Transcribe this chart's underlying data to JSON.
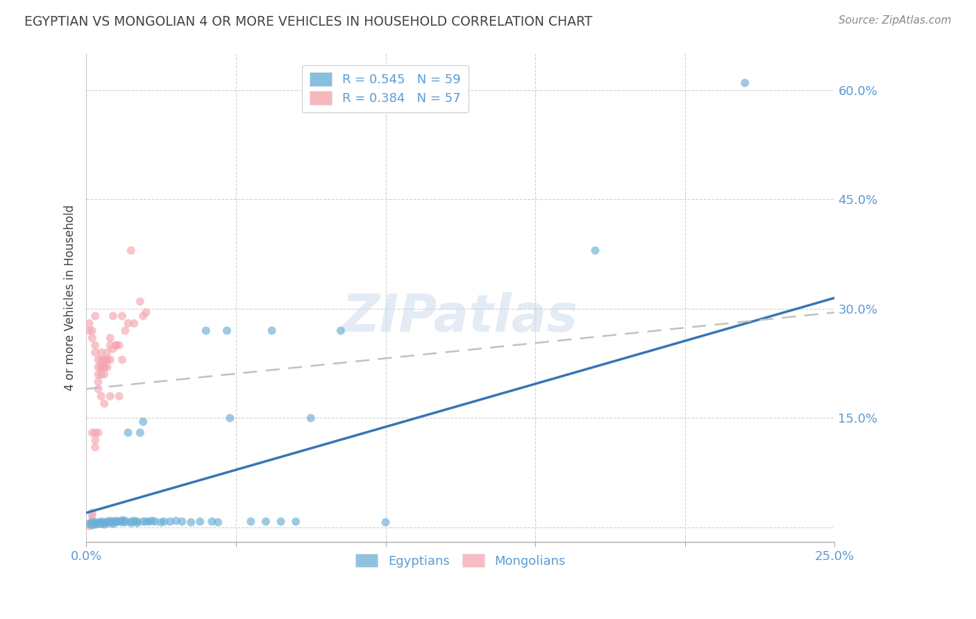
{
  "title": "EGYPTIAN VS MONGOLIAN 4 OR MORE VEHICLES IN HOUSEHOLD CORRELATION CHART",
  "source": "Source: ZipAtlas.com",
  "ylabel": "4 or more Vehicles in Household",
  "xlim": [
    0.0,
    0.25
  ],
  "ylim": [
    -0.02,
    0.65
  ],
  "yticks": [
    0.0,
    0.15,
    0.3,
    0.45,
    0.6
  ],
  "ytick_labels": [
    "",
    "15.0%",
    "30.0%",
    "45.0%",
    "60.0%"
  ],
  "xticks": [
    0.0,
    0.05,
    0.1,
    0.15,
    0.2,
    0.25
  ],
  "xtick_labels": [
    "0.0%",
    "",
    "",
    "",
    "",
    "25.0%"
  ],
  "watermark": "ZIPatlas",
  "legend_entries": [
    {
      "label": "R = 0.545   N = 59",
      "color": "#6baed6"
    },
    {
      "label": "R = 0.384   N = 57",
      "color": "#f4a6b0"
    }
  ],
  "egyptians_scatter": [
    [
      0.001,
      0.005
    ],
    [
      0.002,
      0.008
    ],
    [
      0.002,
      0.003
    ],
    [
      0.003,
      0.006
    ],
    [
      0.003,
      0.004
    ],
    [
      0.004,
      0.007
    ],
    [
      0.004,
      0.005
    ],
    [
      0.005,
      0.008
    ],
    [
      0.005,
      0.005
    ],
    [
      0.006,
      0.007
    ],
    [
      0.006,
      0.004
    ],
    [
      0.007,
      0.008
    ],
    [
      0.007,
      0.006
    ],
    [
      0.008,
      0.009
    ],
    [
      0.008,
      0.006
    ],
    [
      0.009,
      0.008
    ],
    [
      0.009,
      0.005
    ],
    [
      0.01,
      0.009
    ],
    [
      0.01,
      0.007
    ],
    [
      0.011,
      0.008
    ],
    [
      0.012,
      0.01
    ],
    [
      0.012,
      0.007
    ],
    [
      0.013,
      0.009
    ],
    [
      0.013,
      0.007
    ],
    [
      0.014,
      0.13
    ],
    [
      0.015,
      0.008
    ],
    [
      0.015,
      0.006
    ],
    [
      0.016,
      0.009
    ],
    [
      0.017,
      0.008
    ],
    [
      0.017,
      0.006
    ],
    [
      0.018,
      0.13
    ],
    [
      0.019,
      0.008
    ],
    [
      0.019,
      0.145
    ],
    [
      0.02,
      0.008
    ],
    [
      0.021,
      0.008
    ],
    [
      0.022,
      0.009
    ],
    [
      0.023,
      0.008
    ],
    [
      0.025,
      0.007
    ],
    [
      0.026,
      0.008
    ],
    [
      0.028,
      0.008
    ],
    [
      0.03,
      0.009
    ],
    [
      0.032,
      0.008
    ],
    [
      0.035,
      0.007
    ],
    [
      0.038,
      0.008
    ],
    [
      0.04,
      0.27
    ],
    [
      0.042,
      0.008
    ],
    [
      0.044,
      0.007
    ],
    [
      0.047,
      0.27
    ],
    [
      0.048,
      0.15
    ],
    [
      0.055,
      0.008
    ],
    [
      0.06,
      0.008
    ],
    [
      0.062,
      0.27
    ],
    [
      0.065,
      0.008
    ],
    [
      0.07,
      0.008
    ],
    [
      0.075,
      0.15
    ],
    [
      0.085,
      0.27
    ],
    [
      0.1,
      0.007
    ],
    [
      0.17,
      0.38
    ],
    [
      0.22,
      0.61
    ]
  ],
  "mongolians_scatter": [
    [
      0.001,
      0.002
    ],
    [
      0.001,
      0.005
    ],
    [
      0.001,
      0.27
    ],
    [
      0.001,
      0.28
    ],
    [
      0.002,
      0.26
    ],
    [
      0.002,
      0.13
    ],
    [
      0.002,
      0.27
    ],
    [
      0.002,
      0.005
    ],
    [
      0.002,
      0.015
    ],
    [
      0.002,
      0.02
    ],
    [
      0.003,
      0.13
    ],
    [
      0.003,
      0.12
    ],
    [
      0.003,
      0.11
    ],
    [
      0.003,
      0.24
    ],
    [
      0.003,
      0.29
    ],
    [
      0.003,
      0.25
    ],
    [
      0.004,
      0.13
    ],
    [
      0.004,
      0.23
    ],
    [
      0.004,
      0.22
    ],
    [
      0.004,
      0.2
    ],
    [
      0.004,
      0.19
    ],
    [
      0.004,
      0.21
    ],
    [
      0.005,
      0.22
    ],
    [
      0.005,
      0.18
    ],
    [
      0.005,
      0.24
    ],
    [
      0.005,
      0.23
    ],
    [
      0.005,
      0.22
    ],
    [
      0.005,
      0.21
    ],
    [
      0.006,
      0.23
    ],
    [
      0.006,
      0.17
    ],
    [
      0.006,
      0.22
    ],
    [
      0.006,
      0.23
    ],
    [
      0.006,
      0.22
    ],
    [
      0.006,
      0.21
    ],
    [
      0.007,
      0.23
    ],
    [
      0.007,
      0.22
    ],
    [
      0.007,
      0.24
    ],
    [
      0.007,
      0.23
    ],
    [
      0.008,
      0.25
    ],
    [
      0.008,
      0.18
    ],
    [
      0.008,
      0.26
    ],
    [
      0.008,
      0.23
    ],
    [
      0.009,
      0.29
    ],
    [
      0.009,
      0.245
    ],
    [
      0.01,
      0.25
    ],
    [
      0.01,
      0.25
    ],
    [
      0.011,
      0.18
    ],
    [
      0.011,
      0.25
    ],
    [
      0.012,
      0.29
    ],
    [
      0.012,
      0.23
    ],
    [
      0.013,
      0.27
    ],
    [
      0.014,
      0.28
    ],
    [
      0.015,
      0.38
    ],
    [
      0.016,
      0.28
    ],
    [
      0.018,
      0.31
    ],
    [
      0.019,
      0.29
    ],
    [
      0.02,
      0.295
    ]
  ],
  "egyptians_line": {
    "x0": 0.0,
    "y0": 0.02,
    "x1": 0.25,
    "y1": 0.315,
    "color": "#3575b5",
    "lw": 2.5
  },
  "mongolians_line": {
    "x0": 0.0,
    "y0": 0.19,
    "x1": 0.25,
    "y1": 0.295,
    "color": "#c0c0c0",
    "lw": 1.8,
    "dashes": [
      8,
      5
    ]
  },
  "scatter_color_egyptians": "#6baed6",
  "scatter_color_mongolians": "#f4a6b0",
  "scatter_alpha": 0.65,
  "scatter_size": 75,
  "background_color": "#ffffff",
  "grid_color": "#d0d0d0",
  "title_color": "#444444",
  "tick_color": "#5b9bd5"
}
